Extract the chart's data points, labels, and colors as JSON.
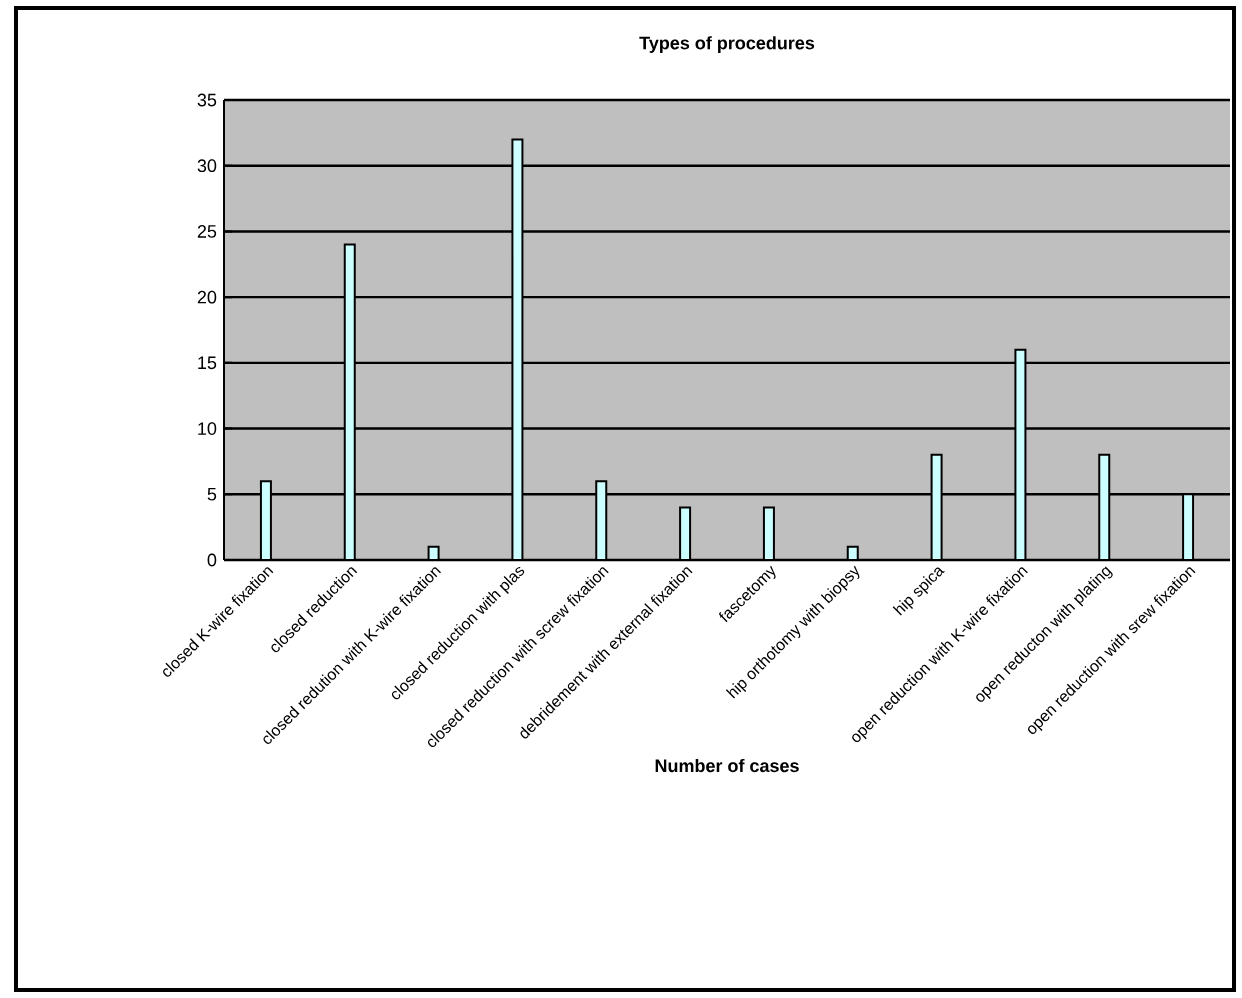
{
  "chart_data": {
    "type": "bar",
    "title": "Types of procedures",
    "xlabel": "Number of cases",
    "categories": [
      "closed K-wire fixation",
      "closed reduction",
      "closed redution with K-wire fixation",
      "closed reduction with plas",
      "closed reduction with screw fixation",
      "debridement with external fixation",
      "fascetomy",
      "hip orthotomy with biopsy",
      "hip spica",
      "open reduction with K-wire fixation",
      "open reducton with plating",
      "open reduction with srew fixation"
    ],
    "values": [
      6,
      24,
      1,
      32,
      6,
      4,
      4,
      1,
      8,
      16,
      8,
      5
    ],
    "color": "#ccffff",
    "ylim": [
      0,
      35
    ],
    "yticks": [
      0,
      5,
      10,
      15,
      20,
      25,
      30,
      35
    ],
    "grid": "y"
  }
}
